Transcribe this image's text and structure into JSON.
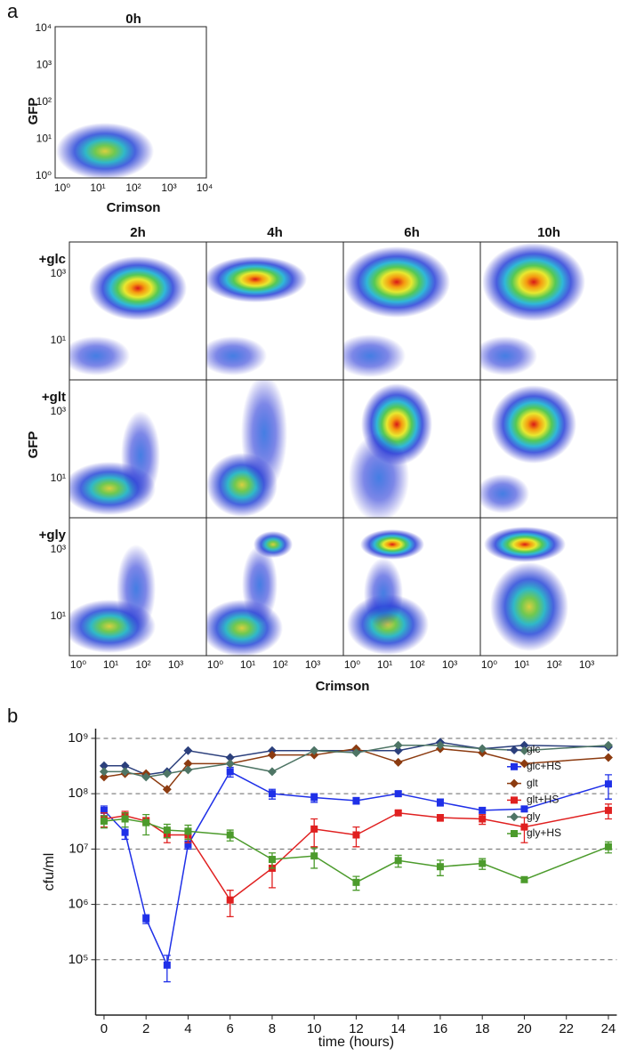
{
  "panel_a": {
    "label": "a",
    "initial": {
      "title": "0h",
      "xlabel": "Crimson",
      "ylabel": "GFP",
      "xticks": [
        "10⁰",
        "10¹",
        "10²",
        "10³",
        "10⁴"
      ],
      "yticks": [
        "10⁰",
        "10¹",
        "10²",
        "10³",
        "10⁴"
      ]
    },
    "grid": {
      "columns": [
        "2h",
        "4h",
        "6h",
        "10h"
      ],
      "rows": [
        "+glc",
        "+glt",
        "+gly"
      ],
      "ylabel": "GFP",
      "xlabel": "Crimson",
      "yticks": [
        "10³",
        "10¹"
      ],
      "xticks": [
        "10⁰",
        "10¹",
        "10²",
        "10³"
      ]
    }
  },
  "panel_b_label": "b",
  "chart_data": {
    "type": "line",
    "xlabel": "time (hours)",
    "ylabel": "cfu/ml",
    "log_y": true,
    "grid": true,
    "legend": "top-right",
    "x": [
      0,
      1,
      2,
      3,
      4,
      6,
      8,
      10,
      12,
      14,
      16,
      18,
      20,
      24
    ],
    "xlim": [
      -0.4,
      24.4
    ],
    "xticks": [
      0,
      2,
      4,
      6,
      8,
      10,
      12,
      14,
      16,
      18,
      20,
      22,
      24
    ],
    "ylim": [
      10000,
      1500000000
    ],
    "yticks": [
      {
        "value": 100000,
        "label": "10⁵"
      },
      {
        "value": 1000000,
        "label": "10⁶"
      },
      {
        "value": 10000000,
        "label": "10⁷"
      },
      {
        "value": 100000000,
        "label": "10⁸"
      },
      {
        "value": 1000000000,
        "label": "10⁹"
      }
    ],
    "series": [
      {
        "name": "glc",
        "color": "#2b3f7c",
        "marker": "diamond",
        "values": [
          320000000,
          320000000,
          220000000,
          250000000,
          600000000,
          450000000,
          600000000,
          600000000,
          600000000,
          600000000,
          850000000,
          650000000,
          750000000,
          700000000
        ]
      },
      {
        "name": "glc+HS",
        "color": "#1f30e8",
        "marker": "square",
        "values": [
          50000000,
          20000000,
          550000,
          80000,
          12000000,
          250000000,
          100000000,
          85000000,
          75000000,
          100000000,
          70000000,
          50000000,
          53000000,
          150000000
        ],
        "errors": [
          10000000,
          5000000,
          100000,
          40000,
          2000000,
          50000000,
          20000000,
          15000000,
          10000000,
          10000000,
          10000000,
          5000000,
          5000000,
          70000000
        ]
      },
      {
        "name": "glt",
        "color": "#8c3b10",
        "marker": "diamond",
        "values": [
          200000000,
          230000000,
          230000000,
          120000000,
          350000000,
          350000000,
          500000000,
          500000000,
          650000000,
          370000000,
          650000000,
          550000000,
          350000000,
          450000000
        ]
      },
      {
        "name": "glt+HS",
        "color": "#e02020",
        "marker": "square",
        "values": [
          35000000,
          40000000,
          32000000,
          18000000,
          18000000,
          1200000,
          4500000,
          23000000,
          18000000,
          45000000,
          37000000,
          35000000,
          25000000,
          50000000
        ],
        "errors": [
          10000000,
          8000000,
          5000000,
          5000000,
          5000000,
          600000,
          2500000,
          12000000,
          7000000,
          4000000,
          5000000,
          7000000,
          12000000,
          15000000
        ]
      },
      {
        "name": "gly",
        "color": "#4e7565",
        "marker": "diamond",
        "values": [
          250000000,
          250000000,
          200000000,
          230000000,
          270000000,
          350000000,
          250000000,
          600000000,
          550000000,
          750000000,
          750000000,
          650000000,
          600000000,
          750000000
        ]
      },
      {
        "name": "gly+HS",
        "color": "#4c9b2c",
        "marker": "square",
        "values": [
          32000000,
          35000000,
          30000000,
          22000000,
          21000000,
          18000000,
          6500000,
          7500000,
          2500000,
          6200000,
          4800000,
          5500000,
          2800000,
          11000000
        ],
        "errors": [
          8000000,
          10000000,
          12000000,
          6000000,
          6000000,
          4000000,
          2000000,
          3000000,
          700000,
          1500000,
          1500000,
          1200000,
          300000,
          2500000
        ]
      }
    ]
  }
}
